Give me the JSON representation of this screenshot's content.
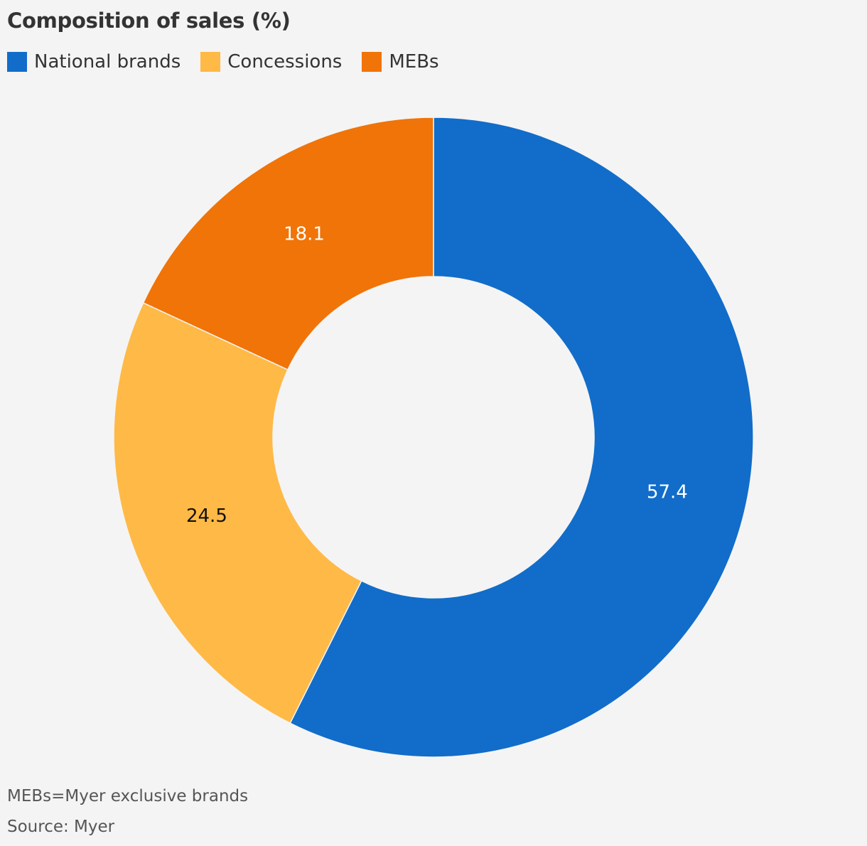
{
  "chart_data": {
    "type": "pie",
    "variant": "donut",
    "title": "Composition of sales (%)",
    "legend_placement": "top-left",
    "slices": [
      {
        "name": "National brands",
        "value": 57.4,
        "label": "57.4",
        "color": "#116dc9",
        "label_color": "#ffffff"
      },
      {
        "name": "Concessions",
        "value": 24.5,
        "label": "24.5",
        "color": "#ffb946",
        "label_color": "#111111"
      },
      {
        "name": "MEBs",
        "value": 18.1,
        "label": "18.1",
        "color": "#f07408",
        "label_color": "#ffffff"
      }
    ],
    "start": "top",
    "direction": "clockwise"
  },
  "legend": {
    "items": [
      {
        "label": "National brands",
        "color": "#116dc9"
      },
      {
        "label": "Concessions",
        "color": "#ffb946"
      },
      {
        "label": "MEBs",
        "color": "#f07408"
      }
    ]
  },
  "footer": {
    "note": "MEBs=Myer exclusive brands",
    "source": "Source: Myer"
  }
}
